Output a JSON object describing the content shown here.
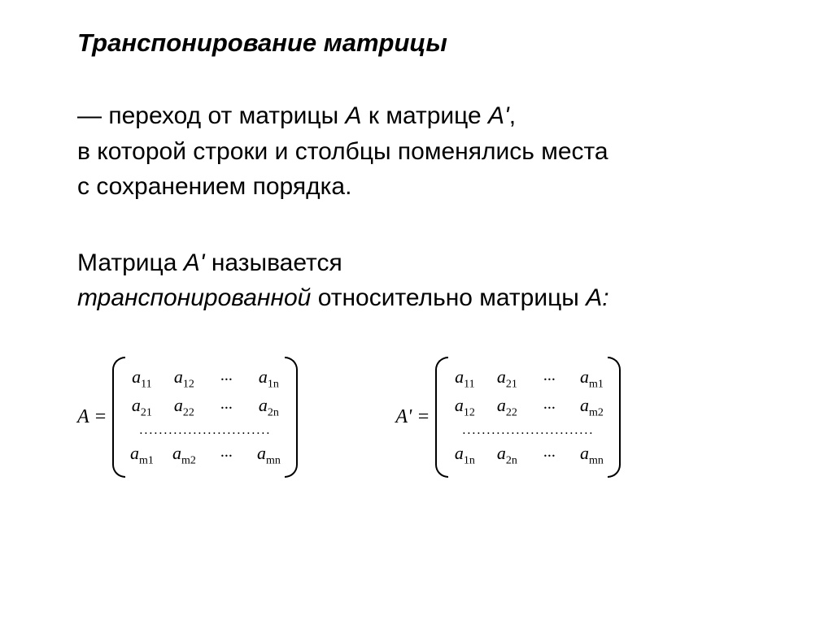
{
  "title": "Транспонирование матрицы",
  "paragraph1": {
    "line1_pre": "— переход от матрицы ",
    "line1_A": "А",
    "line1_mid": " к матрице ",
    "line1_Aprime": "А'",
    "line1_post": ",",
    "line2": "в которой строки и столбцы поменялись места",
    "line3": "с сохранением порядка."
  },
  "paragraph2": {
    "line1_pre": "Матрица ",
    "line1_A": "А'",
    "line1_post": " называется",
    "line2_italic": "транспонированной",
    "line2_post": " относительно матрицы ",
    "line2_A": "А:"
  },
  "matrixA": {
    "label": "A =",
    "rows": [
      [
        {
          "base": "a",
          "sub": "11"
        },
        {
          "base": "a",
          "sub": "12"
        },
        {
          "ellipsis": "..."
        },
        {
          "base": "a",
          "sub": "1n"
        }
      ],
      [
        {
          "base": "a",
          "sub": "21"
        },
        {
          "base": "a",
          "sub": "22"
        },
        {
          "ellipsis": "..."
        },
        {
          "base": "a",
          "sub": "2n"
        }
      ]
    ],
    "dots": "...........................",
    "lastRow": [
      {
        "base": "a",
        "sub": "m1"
      },
      {
        "base": "a",
        "sub": "m2"
      },
      {
        "ellipsis": "..."
      },
      {
        "base": "a",
        "sub": "mn"
      }
    ]
  },
  "matrixAprime": {
    "label": "A' =",
    "rows": [
      [
        {
          "base": "a",
          "sub": "11"
        },
        {
          "base": "a",
          "sub": "21"
        },
        {
          "ellipsis": "..."
        },
        {
          "base": "a",
          "sub": "m1"
        }
      ],
      [
        {
          "base": "a",
          "sub": "12"
        },
        {
          "base": "a",
          "sub": "22"
        },
        {
          "ellipsis": "..."
        },
        {
          "base": "a",
          "sub": "m2"
        }
      ]
    ],
    "dots": "...........................",
    "lastRow": [
      {
        "base": "a",
        "sub": "1n"
      },
      {
        "base": "a",
        "sub": "2n"
      },
      {
        "ellipsis": "..."
      },
      {
        "base": "a",
        "sub": "mn"
      }
    ]
  },
  "styling": {
    "background_color": "#ffffff",
    "text_color": "#000000",
    "title_fontsize": 31,
    "body_fontsize": 30,
    "matrix_label_fontsize": 24,
    "matrix_cell_fontsize": 22,
    "subscript_fontsize": 14
  }
}
